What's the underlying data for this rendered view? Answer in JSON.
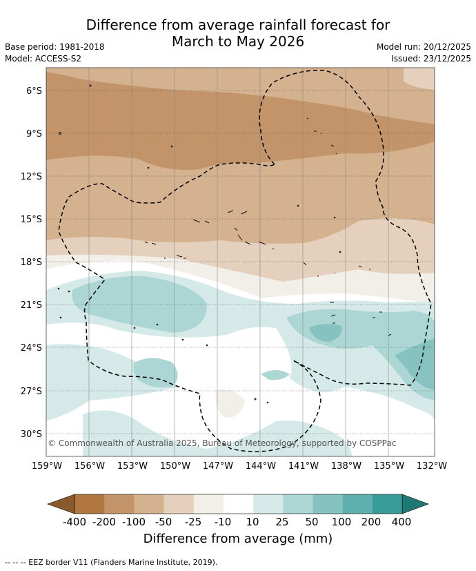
{
  "title_line1": "Difference from average rainfall forecast for",
  "title_line2": "March to May 2026",
  "meta_left": {
    "base_period": "Base period: 1981-2018",
    "model": "Model: ACCESS-S2"
  },
  "meta_right": {
    "model_run": "Model run: 20/12/2025",
    "issued": "Issued: 23/12/2025"
  },
  "copyright": "© Commonwealth of Australia 2025, Bureau of Meteorology, supported by COSPPac",
  "lat_labels": [
    "6°S",
    "9°S",
    "12°S",
    "15°S",
    "18°S",
    "21°S",
    "24°S",
    "27°S",
    "30°S"
  ],
  "lon_labels": [
    "159°W",
    "156°W",
    "153°W",
    "150°W",
    "147°W",
    "144°W",
    "141°W",
    "138°W",
    "135°W",
    "132°W"
  ],
  "colorbar": {
    "title": "Difference from average (mm)",
    "tick_labels": [
      "-400",
      "-200",
      "-100",
      "-50",
      "-25",
      "-10",
      "10",
      "25",
      "50",
      "100",
      "200",
      "400"
    ],
    "colors": [
      "#8a5a2b",
      "#b07840",
      "#c39469",
      "#d4b18f",
      "#e4d0bd",
      "#f2eee8",
      "#ffffff",
      "#d5eae8",
      "#acd6d4",
      "#86c2c0",
      "#5eb0ae",
      "#3a9c99",
      "#1f7874"
    ]
  },
  "legend_line": "--  --  -- EEZ border V11 (Flanders Marine Institute, 2019)."
}
